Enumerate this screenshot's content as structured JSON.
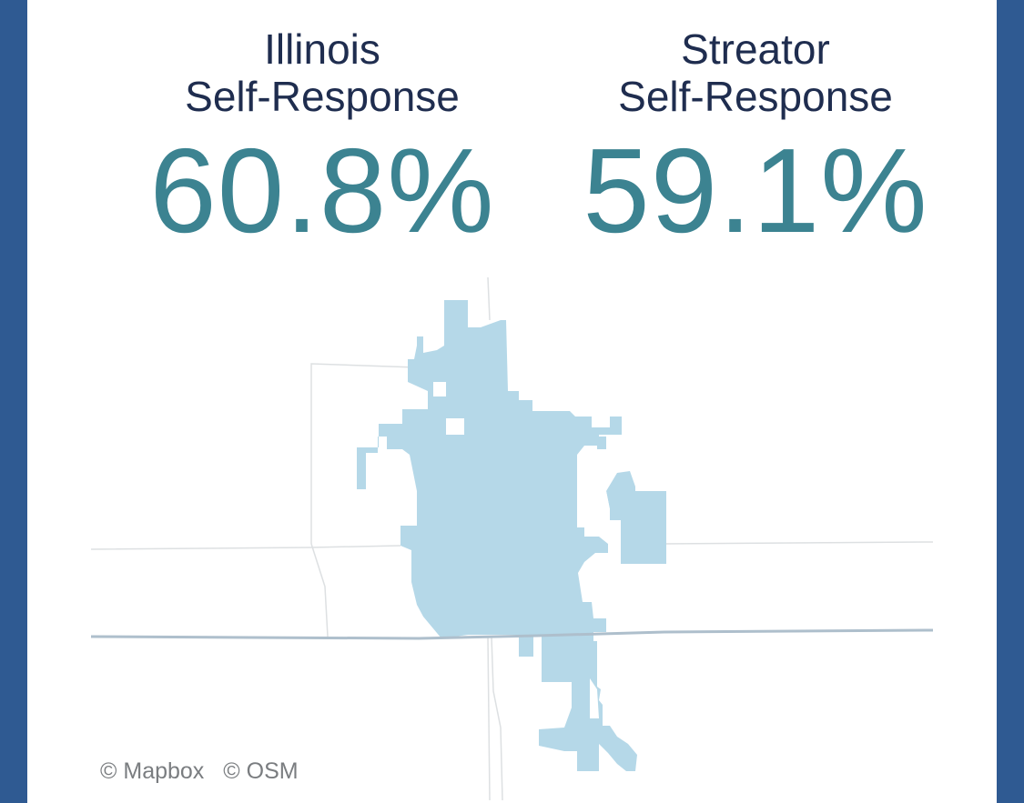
{
  "stats": {
    "left": {
      "label_line1": "Illinois",
      "label_line2": "Self-Response",
      "value": "60.8%"
    },
    "right": {
      "label_line1": "Streator",
      "label_line2": "Self-Response",
      "value": "59.1%"
    }
  },
  "map": {
    "city_fill_color": "#b5d8e8",
    "major_road_color": "#aebfcc",
    "minor_road_color": "#dde0e2"
  },
  "attribution": {
    "mapbox": "© Mapbox",
    "osm": "© OSM"
  },
  "colors": {
    "frame": "#2f5a92",
    "label": "#1f2d4f",
    "value": "#3c8391"
  }
}
